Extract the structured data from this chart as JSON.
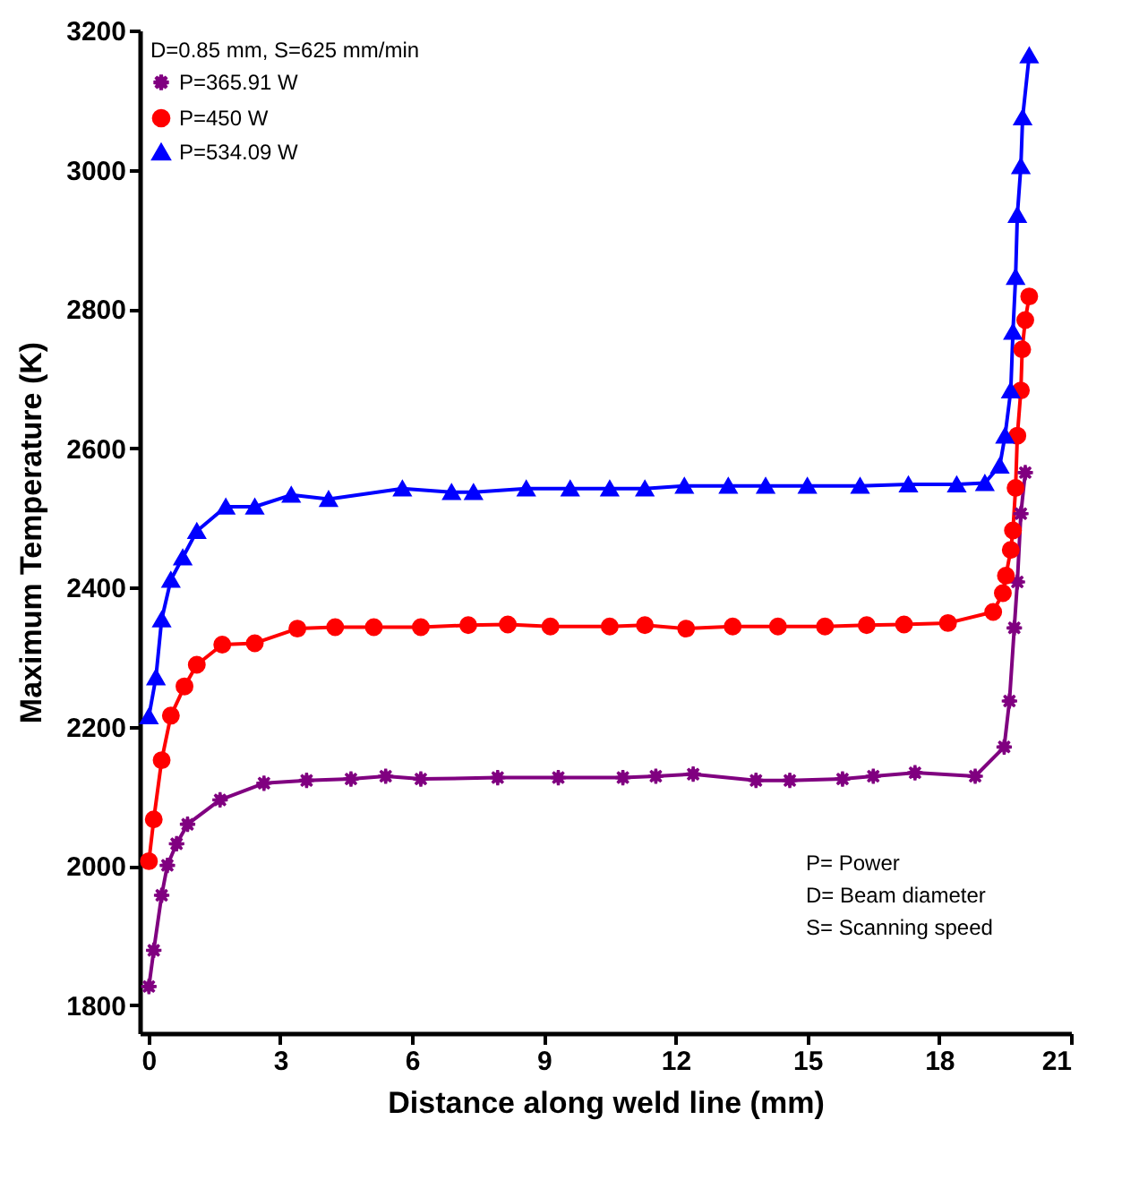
{
  "chart_data": {
    "type": "line",
    "xlabel": "Distance along weld line  (mm)",
    "ylabel": "Maximum Temperature  (K)",
    "legend_title": "D=0.85 mm, S=625 mm/min",
    "legend": "top left",
    "grid": false,
    "line_style": "solid",
    "xlim": [
      -0.2,
      21
    ],
    "xticks": [
      0,
      3,
      6,
      9,
      12,
      15,
      18,
      21
    ],
    "ylim": [
      1760,
      3200
    ],
    "yticks": [
      1800,
      2000,
      2200,
      2400,
      2600,
      2800,
      3000,
      3200
    ],
    "annotations": [
      "P= Power",
      "D= Beam diameter",
      "S= Scanning speed"
    ],
    "series": [
      {
        "name": "P=365.91 W",
        "color": "#800080",
        "marker": "star",
        "x": [
          0.01,
          0.12,
          0.3,
          0.43,
          0.64,
          0.89,
          1.63,
          2.63,
          3.6,
          4.61,
          5.4,
          6.2,
          7.95,
          9.33,
          10.8,
          11.55,
          12.4,
          13.83,
          14.6,
          15.8,
          16.5,
          17.45,
          18.82,
          19.48,
          19.6,
          19.71,
          19.78,
          19.86,
          19.96
        ],
        "values": [
          1827,
          1879,
          1958,
          2001,
          2032,
          2060,
          2095,
          2119,
          2123,
          2125,
          2129,
          2125,
          2127,
          2127,
          2127,
          2129,
          2132,
          2123,
          2123,
          2125,
          2129,
          2134,
          2129,
          2171,
          2237,
          2342,
          2408,
          2506,
          2565
        ]
      },
      {
        "name": "P=450 W",
        "color": "#ff0000",
        "marker": "circle",
        "x": [
          0.01,
          0.12,
          0.3,
          0.51,
          0.82,
          1.1,
          1.68,
          2.42,
          3.39,
          4.25,
          5.13,
          6.2,
          7.28,
          8.18,
          9.15,
          10.5,
          11.3,
          12.24,
          13.3,
          14.33,
          15.4,
          16.35,
          17.2,
          18.2,
          19.23,
          19.45,
          19.52,
          19.63,
          19.68,
          19.74,
          19.78,
          19.86,
          19.89,
          19.96,
          20.05
        ],
        "values": [
          2007,
          2067,
          2152,
          2216,
          2258,
          2289,
          2318,
          2320,
          2341,
          2343,
          2343,
          2343,
          2346,
          2347,
          2344,
          2344,
          2346,
          2341,
          2344,
          2344,
          2344,
          2346,
          2347,
          2349,
          2365,
          2392,
          2417,
          2454,
          2482,
          2543,
          2618,
          2683,
          2742,
          2784,
          2818
        ]
      },
      {
        "name": "P=534.09 W",
        "color": "#0000ff",
        "marker": "triangle",
        "x": [
          0.01,
          0.17,
          0.3,
          0.51,
          0.78,
          1.1,
          1.76,
          2.42,
          3.25,
          4.1,
          5.78,
          6.9,
          7.4,
          8.6,
          9.6,
          10.5,
          11.3,
          12.2,
          13.2,
          14.05,
          15.0,
          16.2,
          17.3,
          18.4,
          19.04,
          19.38,
          19.5,
          19.63,
          19.68,
          19.74,
          19.78,
          19.86,
          19.9,
          20.05
        ],
        "values": [
          2215,
          2271,
          2354,
          2411,
          2443,
          2481,
          2516,
          2516,
          2533,
          2527,
          2542,
          2537,
          2537,
          2542,
          2542,
          2542,
          2542,
          2546,
          2546,
          2546,
          2546,
          2546,
          2548,
          2548,
          2550,
          2575,
          2618,
          2683,
          2767,
          2846,
          2935,
          3005,
          3075,
          3164
        ]
      }
    ]
  }
}
